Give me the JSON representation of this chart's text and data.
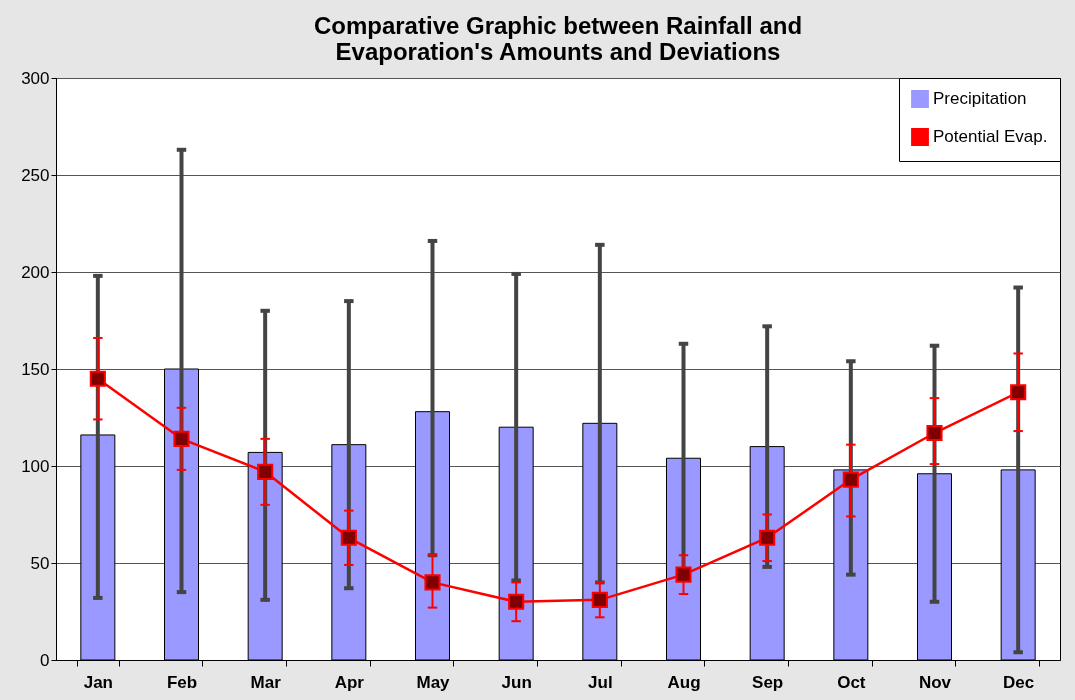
{
  "chart_data": {
    "type": "bar",
    "title": [
      "Comparative Graphic between Rainfall and",
      "Evaporation's Amounts and Deviations"
    ],
    "categories": [
      "Jan",
      "Feb",
      "Mar",
      "Apr",
      "May",
      "Jun",
      "Jul",
      "Aug",
      "Sep",
      "Oct",
      "Nov",
      "Dec"
    ],
    "series": [
      {
        "name": "Precipitation",
        "color": "#9999ff",
        "values": [
          116,
          150,
          107,
          111,
          128,
          120,
          122,
          104,
          110,
          98,
          96,
          98
        ],
        "errors": [
          [
            32,
            198
          ],
          [
            35,
            263
          ],
          [
            31,
            180
          ],
          [
            37,
            185
          ],
          [
            54,
            216
          ],
          [
            41,
            199
          ],
          [
            40,
            214
          ],
          59,
          [
            48,
            172
          ],
          [
            44,
            154
          ],
          [
            30,
            162
          ],
          [
            4,
            192
          ]
        ]
      },
      {
        "name": "Potential Evap.",
        "type": "line",
        "color": "#ff0000",
        "marker": "square",
        "values": [
          145,
          114,
          97,
          63,
          40,
          30,
          31,
          44,
          63,
          93,
          117,
          138
        ],
        "errors": [
          [
            124,
            166
          ],
          [
            98,
            130
          ],
          [
            80,
            114
          ],
          [
            49,
            77
          ],
          [
            27,
            54
          ],
          [
            20,
            40
          ],
          [
            22,
            40
          ],
          [
            34,
            54
          ],
          [
            51,
            75
          ],
          [
            74,
            111
          ],
          [
            101,
            135
          ],
          [
            118,
            158
          ]
        ]
      }
    ],
    "ylim": [
      0,
      300
    ],
    "yticks": [
      0,
      50,
      100,
      150,
      200,
      250,
      300
    ],
    "grid": "y",
    "legend": "top right"
  }
}
